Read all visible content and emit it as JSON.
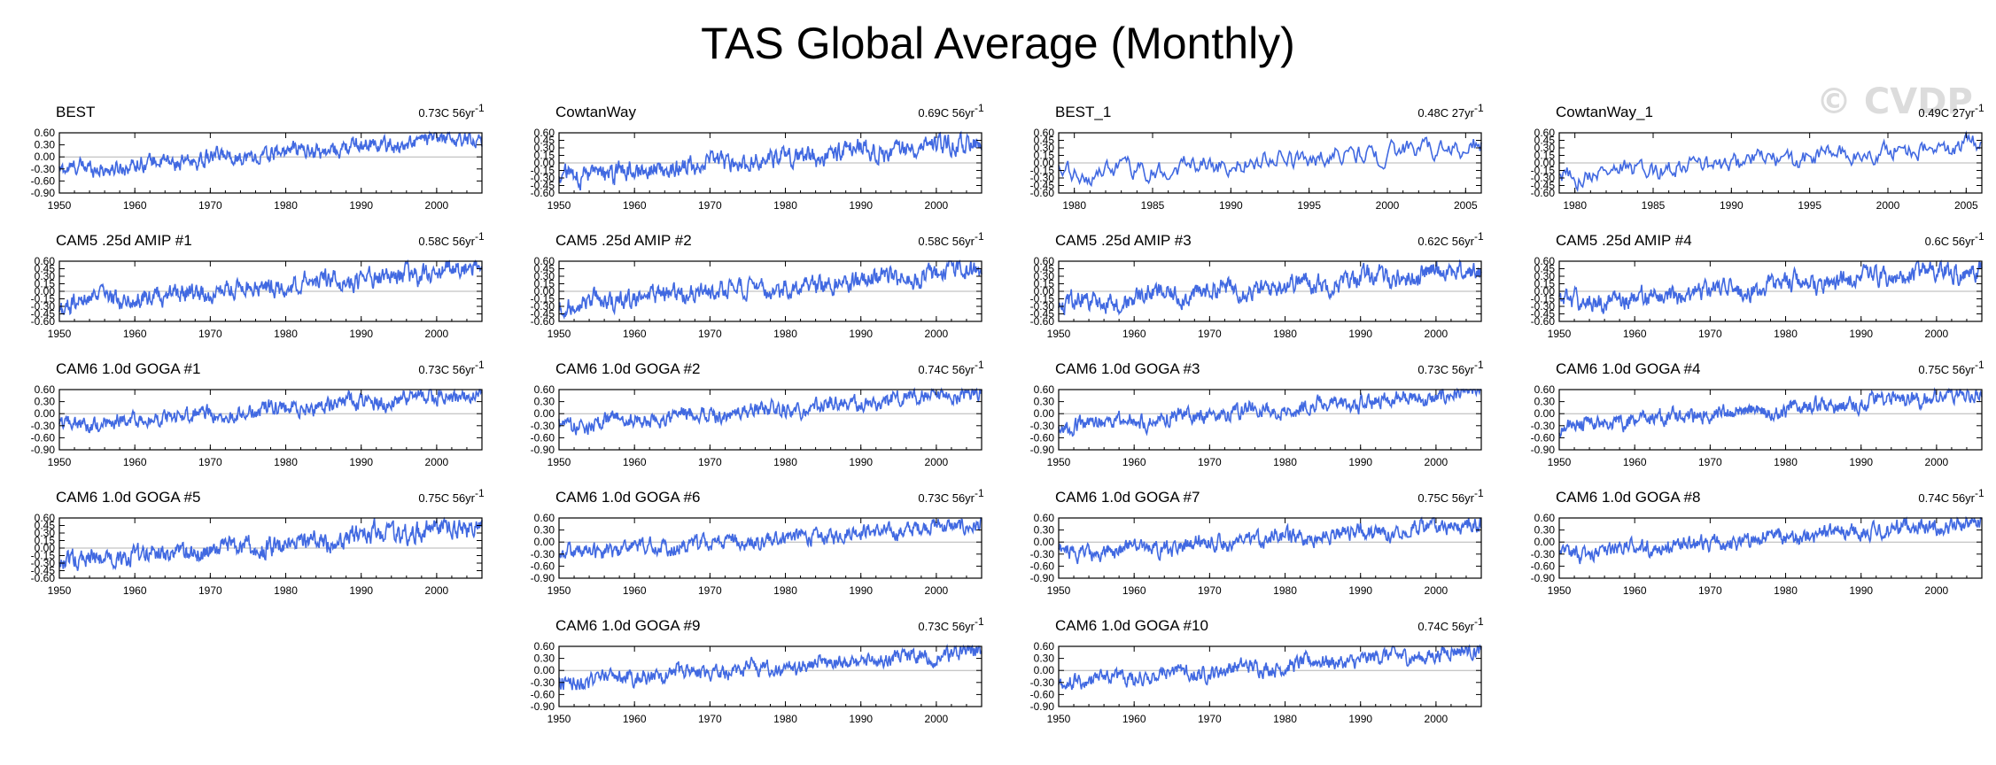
{
  "title": "TAS Global Average (Monthly)",
  "watermark": "© CVDP",
  "colors": {
    "line": "#4169e1",
    "axis": "#000000",
    "zero": "#b4b4b4"
  },
  "chart_data": [
    {
      "type": "line",
      "name": "BEST",
      "trend": "0.73C 56yr",
      "trend_sup": "-1",
      "xlim": [
        1950,
        2006
      ],
      "xticks": [
        1950,
        1960,
        1970,
        1980,
        1990,
        2000
      ],
      "ylim": [
        -0.9,
        0.6
      ],
      "yticks": [
        0.6,
        0.3,
        0.0,
        -0.3,
        -0.6,
        -0.9
      ],
      "ytick_labels": [
        "0.60",
        "0.30",
        "0.00",
        "-0.30",
        "-0.60",
        "-0.90"
      ],
      "series": [
        {
          "name": "BEST",
          "y_start": -0.35,
          "y_end": 0.5
        }
      ]
    },
    {
      "type": "line",
      "name": "CowtanWay",
      "trend": "0.69C 56yr",
      "trend_sup": "-1",
      "xlim": [
        1950,
        2006
      ],
      "xticks": [
        1950,
        1960,
        1970,
        1980,
        1990,
        2000
      ],
      "ylim": [
        -0.6,
        0.6
      ],
      "yticks": [
        0.6,
        0.45,
        0.3,
        0.15,
        0.0,
        -0.15,
        -0.3,
        -0.45,
        -0.6
      ],
      "ytick_labels": [
        "0.60",
        "0.45",
        "0.30",
        "0.15",
        "0.00",
        "-0.15",
        "-0.30",
        "-0.45",
        "-0.60"
      ],
      "series": [
        {
          "name": "CowtanWay",
          "y_start": -0.3,
          "y_end": 0.45
        }
      ]
    },
    {
      "type": "line",
      "name": "BEST_1",
      "trend": "0.48C 27yr",
      "trend_sup": "-1",
      "xlim": [
        1979,
        2006
      ],
      "xticks": [
        1980,
        1985,
        1990,
        1995,
        2000,
        2005
      ],
      "ylim": [
        -0.6,
        0.6
      ],
      "yticks": [
        0.6,
        0.45,
        0.3,
        0.15,
        0.0,
        -0.15,
        -0.3,
        -0.45,
        -0.6
      ],
      "ytick_labels": [
        "0.60",
        "0.45",
        "0.30",
        "0.15",
        "0.00",
        "-0.15",
        "-0.30",
        "-0.45",
        "-0.60"
      ],
      "series": [
        {
          "name": "BEST_1",
          "y_start": -0.25,
          "y_end": 0.35
        }
      ]
    },
    {
      "type": "line",
      "name": "CowtanWay_1",
      "trend": "0.49C 27yr",
      "trend_sup": "-1",
      "xlim": [
        1979,
        2006
      ],
      "xticks": [
        1980,
        1985,
        1990,
        1995,
        2000,
        2005
      ],
      "ylim": [
        -0.6,
        0.6
      ],
      "yticks": [
        0.6,
        0.45,
        0.3,
        0.15,
        0.0,
        -0.15,
        -0.3,
        -0.45,
        -0.6
      ],
      "ytick_labels": [
        "0.60",
        "0.45",
        "0.30",
        "0.15",
        "0.00",
        "-0.15",
        "-0.30",
        "-0.45",
        "-0.60"
      ],
      "series": [
        {
          "name": "CowtanWay_1",
          "y_start": -0.25,
          "y_end": 0.35
        }
      ]
    },
    {
      "type": "line",
      "name": "CAM5 .25d AMIP #1",
      "trend": "0.58C 56yr",
      "trend_sup": "-1",
      "xlim": [
        1950,
        2006
      ],
      "xticks": [
        1950,
        1960,
        1970,
        1980,
        1990,
        2000
      ],
      "ylim": [
        -0.6,
        0.6
      ],
      "yticks": [
        0.6,
        0.45,
        0.3,
        0.15,
        0.0,
        -0.15,
        -0.3,
        -0.45,
        -0.6
      ],
      "ytick_labels": [
        "0.60",
        "0.45",
        "0.30",
        "0.15",
        "0.00",
        "-0.15",
        "-0.30",
        "-0.45",
        "-0.60"
      ],
      "series": [
        {
          "name": "CAM5 .25d AMIP #1",
          "y_start": -0.25,
          "y_end": 0.45
        }
      ]
    },
    {
      "type": "line",
      "name": "CAM5 .25d AMIP #2",
      "trend": "0.58C 56yr",
      "trend_sup": "-1",
      "xlim": [
        1950,
        2006
      ],
      "xticks": [
        1950,
        1960,
        1970,
        1980,
        1990,
        2000
      ],
      "ylim": [
        -0.6,
        0.6
      ],
      "yticks": [
        0.6,
        0.45,
        0.3,
        0.15,
        0.0,
        -0.15,
        -0.3,
        -0.45,
        -0.6
      ],
      "ytick_labels": [
        "0.60",
        "0.45",
        "0.30",
        "0.15",
        "0.00",
        "-0.15",
        "-0.30",
        "-0.45",
        "-0.60"
      ],
      "series": [
        {
          "name": "CAM5 .25d AMIP #2",
          "y_start": -0.25,
          "y_end": 0.4
        }
      ]
    },
    {
      "type": "line",
      "name": "CAM5 .25d AMIP #3",
      "trend": "0.62C 56yr",
      "trend_sup": "-1",
      "xlim": [
        1950,
        2006
      ],
      "xticks": [
        1950,
        1960,
        1970,
        1980,
        1990,
        2000
      ],
      "ylim": [
        -0.6,
        0.6
      ],
      "yticks": [
        0.6,
        0.45,
        0.3,
        0.15,
        0.0,
        -0.15,
        -0.3,
        -0.45,
        -0.6
      ],
      "ytick_labels": [
        "0.60",
        "0.45",
        "0.30",
        "0.15",
        "0.00",
        "-0.15",
        "-0.30",
        "-0.45",
        "-0.60"
      ],
      "series": [
        {
          "name": "CAM5 .25d AMIP #3",
          "y_start": -0.25,
          "y_end": 0.45
        }
      ]
    },
    {
      "type": "line",
      "name": "CAM5 .25d AMIP #4",
      "trend": "0.6C 56yr",
      "trend_sup": "-1",
      "xlim": [
        1950,
        2006
      ],
      "xticks": [
        1950,
        1960,
        1970,
        1980,
        1990,
        2000
      ],
      "ylim": [
        -0.6,
        0.6
      ],
      "yticks": [
        0.6,
        0.45,
        0.3,
        0.15,
        0.0,
        -0.15,
        -0.3,
        -0.45,
        -0.6
      ],
      "ytick_labels": [
        "0.60",
        "0.45",
        "0.30",
        "0.15",
        "0.00",
        "-0.15",
        "-0.30",
        "-0.45",
        "-0.60"
      ],
      "series": [
        {
          "name": "CAM5 .25d AMIP #4",
          "y_start": -0.25,
          "y_end": 0.45
        }
      ]
    },
    {
      "type": "line",
      "name": "CAM6 1.0d GOGA #1",
      "trend": "0.73C 56yr",
      "trend_sup": "-1",
      "xlim": [
        1950,
        2006
      ],
      "xticks": [
        1950,
        1960,
        1970,
        1980,
        1990,
        2000
      ],
      "ylim": [
        -0.9,
        0.6
      ],
      "yticks": [
        0.6,
        0.3,
        0.0,
        -0.3,
        -0.6,
        -0.9
      ],
      "ytick_labels": [
        "0.60",
        "0.30",
        "0.00",
        "-0.30",
        "-0.60",
        "-0.90"
      ],
      "series": [
        {
          "name": "CAM6 1.0d GOGA #1",
          "y_start": -0.3,
          "y_end": 0.5
        }
      ]
    },
    {
      "type": "line",
      "name": "CAM6 1.0d GOGA #2",
      "trend": "0.74C 56yr",
      "trend_sup": "-1",
      "xlim": [
        1950,
        2006
      ],
      "xticks": [
        1950,
        1960,
        1970,
        1980,
        1990,
        2000
      ],
      "ylim": [
        -0.9,
        0.6
      ],
      "yticks": [
        0.6,
        0.3,
        0.0,
        -0.3,
        -0.6,
        -0.9
      ],
      "ytick_labels": [
        "0.60",
        "0.30",
        "0.00",
        "-0.30",
        "-0.60",
        "-0.90"
      ],
      "series": [
        {
          "name": "CAM6 1.0d GOGA #2",
          "y_start": -0.3,
          "y_end": 0.5
        }
      ]
    },
    {
      "type": "line",
      "name": "CAM6 1.0d GOGA #3",
      "trend": "0.73C 56yr",
      "trend_sup": "-1",
      "xlim": [
        1950,
        2006
      ],
      "xticks": [
        1950,
        1960,
        1970,
        1980,
        1990,
        2000
      ],
      "ylim": [
        -0.9,
        0.6
      ],
      "yticks": [
        0.6,
        0.3,
        0.0,
        -0.3,
        -0.6,
        -0.9
      ],
      "ytick_labels": [
        "0.60",
        "0.30",
        "0.00",
        "-0.30",
        "-0.60",
        "-0.90"
      ],
      "series": [
        {
          "name": "CAM6 1.0d GOGA #3",
          "y_start": -0.3,
          "y_end": 0.5
        }
      ]
    },
    {
      "type": "line",
      "name": "CAM6 1.0d GOGA #4",
      "trend": "0.75C 56yr",
      "trend_sup": "-1",
      "xlim": [
        1950,
        2006
      ],
      "xticks": [
        1950,
        1960,
        1970,
        1980,
        1990,
        2000
      ],
      "ylim": [
        -0.9,
        0.6
      ],
      "yticks": [
        0.6,
        0.3,
        0.0,
        -0.3,
        -0.6,
        -0.9
      ],
      "ytick_labels": [
        "0.60",
        "0.30",
        "0.00",
        "-0.30",
        "-0.60",
        "-0.90"
      ],
      "series": [
        {
          "name": "CAM6 1.0d GOGA #4",
          "y_start": -0.3,
          "y_end": 0.5
        }
      ]
    },
    {
      "type": "line",
      "name": "CAM6 1.0d GOGA #5",
      "trend": "0.75C 56yr",
      "trend_sup": "-1",
      "xlim": [
        1950,
        2006
      ],
      "xticks": [
        1950,
        1960,
        1970,
        1980,
        1990,
        2000
      ],
      "ylim": [
        -0.6,
        0.6
      ],
      "yticks": [
        0.6,
        0.45,
        0.3,
        0.15,
        0.0,
        -0.15,
        -0.3,
        -0.45,
        -0.6
      ],
      "ytick_labels": [
        "0.60",
        "0.45",
        "0.30",
        "0.15",
        "0.00",
        "-0.15",
        "-0.30",
        "-0.45",
        "-0.60"
      ],
      "series": [
        {
          "name": "CAM6 1.0d GOGA #5",
          "y_start": -0.3,
          "y_end": 0.45
        }
      ]
    },
    {
      "type": "line",
      "name": "CAM6 1.0d GOGA #6",
      "trend": "0.73C 56yr",
      "trend_sup": "-1",
      "xlim": [
        1950,
        2006
      ],
      "xticks": [
        1950,
        1960,
        1970,
        1980,
        1990,
        2000
      ],
      "ylim": [
        -0.9,
        0.6
      ],
      "yticks": [
        0.6,
        0.3,
        0.0,
        -0.3,
        -0.6,
        -0.9
      ],
      "ytick_labels": [
        "0.60",
        "0.30",
        "0.00",
        "-0.30",
        "-0.60",
        "-0.90"
      ],
      "series": [
        {
          "name": "CAM6 1.0d GOGA #6",
          "y_start": -0.3,
          "y_end": 0.45
        }
      ]
    },
    {
      "type": "line",
      "name": "CAM6 1.0d GOGA #7",
      "trend": "0.75C 56yr",
      "trend_sup": "-1",
      "xlim": [
        1950,
        2006
      ],
      "xticks": [
        1950,
        1960,
        1970,
        1980,
        1990,
        2000
      ],
      "ylim": [
        -0.9,
        0.6
      ],
      "yticks": [
        0.6,
        0.3,
        0.0,
        -0.3,
        -0.6,
        -0.9
      ],
      "ytick_labels": [
        "0.60",
        "0.30",
        "0.00",
        "-0.30",
        "-0.60",
        "-0.90"
      ],
      "series": [
        {
          "name": "CAM6 1.0d GOGA #7",
          "y_start": -0.3,
          "y_end": 0.45
        }
      ]
    },
    {
      "type": "line",
      "name": "CAM6 1.0d GOGA #8",
      "trend": "0.74C 56yr",
      "trend_sup": "-1",
      "xlim": [
        1950,
        2006
      ],
      "xticks": [
        1950,
        1960,
        1970,
        1980,
        1990,
        2000
      ],
      "ylim": [
        -0.9,
        0.6
      ],
      "yticks": [
        0.6,
        0.3,
        0.0,
        -0.3,
        -0.6,
        -0.9
      ],
      "ytick_labels": [
        "0.60",
        "0.30",
        "0.00",
        "-0.30",
        "-0.60",
        "-0.90"
      ],
      "series": [
        {
          "name": "CAM6 1.0d GOGA #8",
          "y_start": -0.3,
          "y_end": 0.5
        }
      ]
    },
    {
      "type": "line",
      "name": "CAM6 1.0d GOGA #9",
      "trend": "0.73C 56yr",
      "trend_sup": "-1",
      "xlim": [
        1950,
        2006
      ],
      "xticks": [
        1950,
        1960,
        1970,
        1980,
        1990,
        2000
      ],
      "ylim": [
        -0.9,
        0.6
      ],
      "yticks": [
        0.6,
        0.3,
        0.0,
        -0.3,
        -0.6,
        -0.9
      ],
      "ytick_labels": [
        "0.60",
        "0.30",
        "0.00",
        "-0.30",
        "-0.60",
        "-0.90"
      ],
      "series": [
        {
          "name": "CAM6 1.0d GOGA #9",
          "y_start": -0.3,
          "y_end": 0.45
        }
      ]
    },
    {
      "type": "line",
      "name": "CAM6 1.0d GOGA #10",
      "trend": "0.74C 56yr",
      "trend_sup": "-1",
      "xlim": [
        1950,
        2006
      ],
      "xticks": [
        1950,
        1960,
        1970,
        1980,
        1990,
        2000
      ],
      "ylim": [
        -0.9,
        0.6
      ],
      "yticks": [
        0.6,
        0.3,
        0.0,
        -0.3,
        -0.6,
        -0.9
      ],
      "ytick_labels": [
        "0.60",
        "0.30",
        "0.00",
        "-0.30",
        "-0.60",
        "-0.90"
      ],
      "series": [
        {
          "name": "CAM6 1.0d GOGA #10",
          "y_start": -0.3,
          "y_end": 0.5
        }
      ]
    }
  ]
}
